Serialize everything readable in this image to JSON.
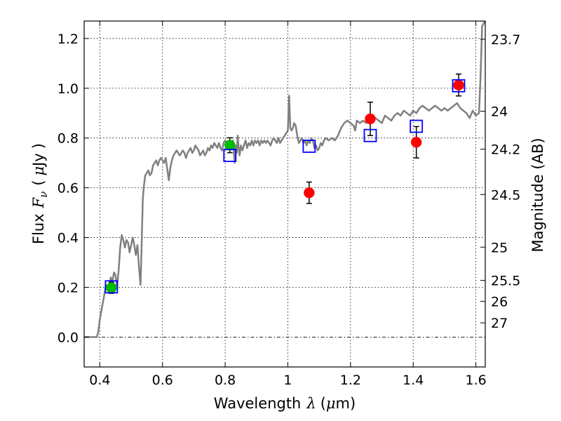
{
  "chart_data": {
    "type": "scatter",
    "title": "",
    "xlabel": {
      "prefix": "Wavelength",
      "symbol": "λ",
      "unit_open": "(",
      "unit_mu": "μ",
      "unit_rest": "m)"
    },
    "ylabel": {
      "prefix": "Flux",
      "symbol": "F",
      "subscript": "ν",
      "unit_open": "(",
      "unit_mu": "μ",
      "unit_rest": "Jy",
      "unit_close": ")"
    },
    "y2label": "Magnitude (AB)",
    "xlim": [
      0.35,
      1.63
    ],
    "ylim": [
      -0.12,
      1.27
    ],
    "grid": true,
    "grid_style": "dotted",
    "zero_line_style": "dash-dot",
    "x_ticks": [
      {
        "value": 0.4,
        "label": "0.4"
      },
      {
        "value": 0.6,
        "label": "0.6"
      },
      {
        "value": 0.8,
        "label": "0.8"
      },
      {
        "value": 1.0,
        "label": "1"
      },
      {
        "value": 1.2,
        "label": "1.2"
      },
      {
        "value": 1.4,
        "label": "1.4"
      },
      {
        "value": 1.6,
        "label": "1.6"
      }
    ],
    "y_ticks": [
      {
        "value": 0.0,
        "label": "0.0"
      },
      {
        "value": 0.2,
        "label": "0.2"
      },
      {
        "value": 0.4,
        "label": "0.4"
      },
      {
        "value": 0.6,
        "label": "0.6"
      },
      {
        "value": 0.8,
        "label": "0.8"
      },
      {
        "value": 1.0,
        "label": "1.0"
      },
      {
        "value": 1.2,
        "label": "1.2"
      }
    ],
    "y2_ticks": [
      {
        "label": "23.7",
        "flux": 1.1967
      },
      {
        "label": "24",
        "flux": 0.9078
      },
      {
        "label": "24.2",
        "flux": 0.7551
      },
      {
        "label": "24.5",
        "flux": 0.5728
      },
      {
        "label": "25",
        "flux": 0.3614
      },
      {
        "label": "25.5",
        "flux": 0.228
      },
      {
        "label": "26",
        "flux": 0.1439
      },
      {
        "label": "27",
        "flux": 0.0573
      }
    ],
    "colors": {
      "model": "#808080",
      "green": "#00bb00",
      "red": "#ff0000",
      "box": "#0000ff",
      "errorbar": "#000000"
    },
    "series": [
      {
        "kind": "line",
        "points": [
          [
            0.35,
            0.0
          ],
          [
            0.365,
            0.0
          ],
          [
            0.38,
            0.0
          ],
          [
            0.39,
            0.0
          ],
          [
            0.395,
            0.02
          ],
          [
            0.4,
            0.07
          ],
          [
            0.41,
            0.14
          ],
          [
            0.42,
            0.21
          ],
          [
            0.43,
            0.2
          ],
          [
            0.435,
            0.24
          ],
          [
            0.44,
            0.22
          ],
          [
            0.445,
            0.26
          ],
          [
            0.45,
            0.25
          ],
          [
            0.455,
            0.2
          ],
          [
            0.46,
            0.27
          ],
          [
            0.465,
            0.36
          ],
          [
            0.47,
            0.41
          ],
          [
            0.475,
            0.39
          ],
          [
            0.48,
            0.36
          ],
          [
            0.485,
            0.39
          ],
          [
            0.49,
            0.38
          ],
          [
            0.495,
            0.34
          ],
          [
            0.5,
            0.37
          ],
          [
            0.505,
            0.4
          ],
          [
            0.51,
            0.37
          ],
          [
            0.515,
            0.33
          ],
          [
            0.52,
            0.37
          ],
          [
            0.525,
            0.28
          ],
          [
            0.53,
            0.21
          ],
          [
            0.533,
            0.35
          ],
          [
            0.537,
            0.55
          ],
          [
            0.54,
            0.6
          ],
          [
            0.545,
            0.65
          ],
          [
            0.55,
            0.66
          ],
          [
            0.555,
            0.67
          ],
          [
            0.56,
            0.65
          ],
          [
            0.565,
            0.66
          ],
          [
            0.57,
            0.69
          ],
          [
            0.575,
            0.7
          ],
          [
            0.58,
            0.71
          ],
          [
            0.585,
            0.69
          ],
          [
            0.59,
            0.71
          ],
          [
            0.595,
            0.72
          ],
          [
            0.6,
            0.71
          ],
          [
            0.605,
            0.7
          ],
          [
            0.61,
            0.72
          ],
          [
            0.615,
            0.68
          ],
          [
            0.62,
            0.63
          ],
          [
            0.625,
            0.68
          ],
          [
            0.63,
            0.71
          ],
          [
            0.635,
            0.73
          ],
          [
            0.64,
            0.74
          ],
          [
            0.645,
            0.75
          ],
          [
            0.65,
            0.74
          ],
          [
            0.655,
            0.73
          ],
          [
            0.66,
            0.74
          ],
          [
            0.665,
            0.75
          ],
          [
            0.67,
            0.74
          ],
          [
            0.675,
            0.72
          ],
          [
            0.68,
            0.74
          ],
          [
            0.685,
            0.75
          ],
          [
            0.69,
            0.76
          ],
          [
            0.695,
            0.74
          ],
          [
            0.7,
            0.75
          ],
          [
            0.705,
            0.77
          ],
          [
            0.71,
            0.76
          ],
          [
            0.715,
            0.75
          ],
          [
            0.72,
            0.73
          ],
          [
            0.725,
            0.74
          ],
          [
            0.73,
            0.75
          ],
          [
            0.735,
            0.73
          ],
          [
            0.74,
            0.74
          ],
          [
            0.745,
            0.76
          ],
          [
            0.75,
            0.75
          ],
          [
            0.755,
            0.77
          ],
          [
            0.76,
            0.76
          ],
          [
            0.765,
            0.78
          ],
          [
            0.77,
            0.77
          ],
          [
            0.775,
            0.76
          ],
          [
            0.78,
            0.78
          ],
          [
            0.785,
            0.76
          ],
          [
            0.79,
            0.75
          ],
          [
            0.795,
            0.78
          ],
          [
            0.8,
            0.79
          ],
          [
            0.805,
            0.78
          ],
          [
            0.81,
            0.77
          ],
          [
            0.815,
            0.76
          ],
          [
            0.82,
            0.78
          ],
          [
            0.825,
            0.79
          ],
          [
            0.828,
            0.74
          ],
          [
            0.83,
            0.7
          ],
          [
            0.833,
            0.77
          ],
          [
            0.837,
            0.74
          ],
          [
            0.84,
            0.81
          ],
          [
            0.843,
            0.76
          ],
          [
            0.846,
            0.73
          ],
          [
            0.85,
            0.77
          ],
          [
            0.855,
            0.75
          ],
          [
            0.86,
            0.77
          ],
          [
            0.865,
            0.79
          ],
          [
            0.87,
            0.76
          ],
          [
            0.875,
            0.78
          ],
          [
            0.88,
            0.77
          ],
          [
            0.885,
            0.79
          ],
          [
            0.89,
            0.77
          ],
          [
            0.895,
            0.79
          ],
          [
            0.9,
            0.78
          ],
          [
            0.905,
            0.79
          ],
          [
            0.91,
            0.77
          ],
          [
            0.915,
            0.79
          ],
          [
            0.92,
            0.78
          ],
          [
            0.925,
            0.79
          ],
          [
            0.93,
            0.78
          ],
          [
            0.935,
            0.79
          ],
          [
            0.94,
            0.78
          ],
          [
            0.945,
            0.77
          ],
          [
            0.95,
            0.79
          ],
          [
            0.955,
            0.8
          ],
          [
            0.96,
            0.79
          ],
          [
            0.965,
            0.78
          ],
          [
            0.97,
            0.8
          ],
          [
            0.975,
            0.78
          ],
          [
            0.98,
            0.79
          ],
          [
            0.985,
            0.8
          ],
          [
            0.99,
            0.81
          ],
          [
            0.995,
            0.82
          ],
          [
            1.0,
            0.83
          ],
          [
            1.002,
            0.9
          ],
          [
            1.004,
            0.97
          ],
          [
            1.006,
            0.9
          ],
          [
            1.008,
            0.84
          ],
          [
            1.012,
            0.83
          ],
          [
            1.016,
            0.84
          ],
          [
            1.02,
            0.86
          ],
          [
            1.025,
            0.85
          ],
          [
            1.03,
            0.81
          ],
          [
            1.035,
            0.78
          ],
          [
            1.04,
            0.79
          ],
          [
            1.045,
            0.8
          ],
          [
            1.05,
            0.78
          ],
          [
            1.055,
            0.79
          ],
          [
            1.06,
            0.77
          ],
          [
            1.065,
            0.79
          ],
          [
            1.07,
            0.78
          ],
          [
            1.075,
            0.8
          ],
          [
            1.08,
            0.79
          ],
          [
            1.085,
            0.76
          ],
          [
            1.09,
            0.77
          ],
          [
            1.095,
            0.75
          ],
          [
            1.1,
            0.76
          ],
          [
            1.105,
            0.78
          ],
          [
            1.11,
            0.77
          ],
          [
            1.115,
            0.79
          ],
          [
            1.12,
            0.8
          ],
          [
            1.13,
            0.79
          ],
          [
            1.14,
            0.8
          ],
          [
            1.15,
            0.79
          ],
          [
            1.16,
            0.81
          ],
          [
            1.17,
            0.84
          ],
          [
            1.18,
            0.86
          ],
          [
            1.19,
            0.87
          ],
          [
            1.2,
            0.86
          ],
          [
            1.21,
            0.85
          ],
          [
            1.215,
            0.83
          ],
          [
            1.22,
            0.87
          ],
          [
            1.23,
            0.86
          ],
          [
            1.24,
            0.87
          ],
          [
            1.25,
            0.86
          ],
          [
            1.26,
            0.88
          ],
          [
            1.27,
            0.87
          ],
          [
            1.28,
            0.88
          ],
          [
            1.29,
            0.87
          ],
          [
            1.3,
            0.86
          ],
          [
            1.31,
            0.89
          ],
          [
            1.32,
            0.88
          ],
          [
            1.33,
            0.87
          ],
          [
            1.34,
            0.89
          ],
          [
            1.35,
            0.9
          ],
          [
            1.36,
            0.89
          ],
          [
            1.37,
            0.91
          ],
          [
            1.38,
            0.9
          ],
          [
            1.39,
            0.89
          ],
          [
            1.4,
            0.91
          ],
          [
            1.41,
            0.9
          ],
          [
            1.42,
            0.92
          ],
          [
            1.43,
            0.93
          ],
          [
            1.44,
            0.92
          ],
          [
            1.45,
            0.91
          ],
          [
            1.46,
            0.92
          ],
          [
            1.47,
            0.93
          ],
          [
            1.48,
            0.92
          ],
          [
            1.49,
            0.91
          ],
          [
            1.5,
            0.92
          ],
          [
            1.51,
            0.91
          ],
          [
            1.52,
            0.92
          ],
          [
            1.53,
            0.93
          ],
          [
            1.54,
            0.94
          ],
          [
            1.55,
            0.92
          ],
          [
            1.56,
            0.91
          ],
          [
            1.57,
            0.9
          ],
          [
            1.58,
            0.88
          ],
          [
            1.59,
            0.91
          ],
          [
            1.6,
            0.89
          ],
          [
            1.61,
            0.9
          ],
          [
            1.615,
            1.05
          ],
          [
            1.62,
            1.25
          ],
          [
            1.63,
            1.27
          ]
        ]
      },
      {
        "kind": "errorbar-points",
        "marker": "circle",
        "color": "green",
        "points": [
          {
            "x": 0.437,
            "y": 0.198,
            "err": 0.022
          },
          {
            "x": 0.815,
            "y": 0.771,
            "err": 0.03
          }
        ]
      },
      {
        "kind": "errorbar-points",
        "marker": "circle",
        "color": "red",
        "points": [
          {
            "x": 1.068,
            "y": 0.58,
            "err": 0.043
          },
          {
            "x": 1.263,
            "y": 0.877,
            "err": 0.067
          },
          {
            "x": 1.41,
            "y": 0.783,
            "err": 0.063
          },
          {
            "x": 1.545,
            "y": 1.013,
            "err": 0.044
          }
        ]
      },
      {
        "kind": "points",
        "marker": "square-open",
        "color": "box",
        "points": [
          {
            "x": 0.437,
            "y": 0.202
          },
          {
            "x": 0.815,
            "y": 0.73
          },
          {
            "x": 1.068,
            "y": 0.767
          },
          {
            "x": 1.263,
            "y": 0.81
          },
          {
            "x": 1.41,
            "y": 0.847
          },
          {
            "x": 1.545,
            "y": 1.01
          }
        ]
      }
    ]
  }
}
